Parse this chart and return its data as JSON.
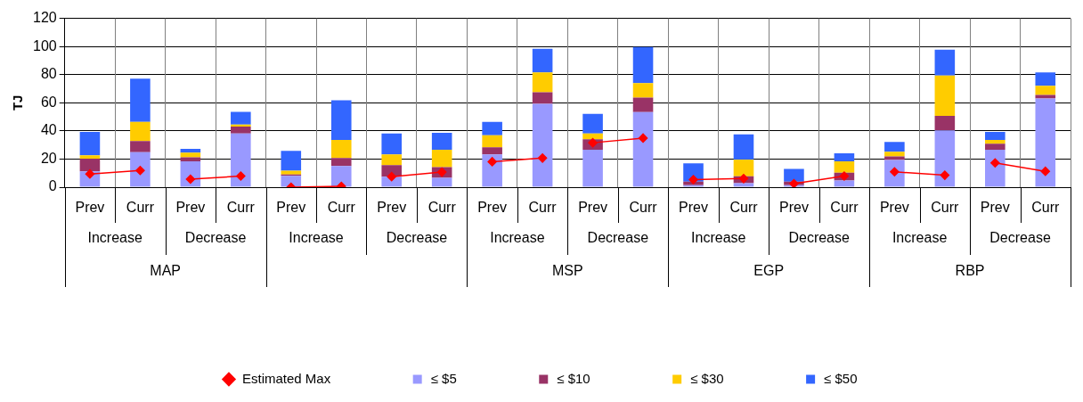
{
  "chart_data": {
    "type": "bar",
    "stacked": true,
    "ylabel": "TJ",
    "ylim": [
      0,
      120
    ],
    "yticks": [
      0,
      20,
      40,
      60,
      80,
      100,
      120
    ],
    "grid": true,
    "legend": "bottom",
    "categories": [
      "Prev",
      "Curr",
      "Prev",
      "Curr",
      "Prev",
      "Curr",
      "Prev",
      "Curr",
      "Prev",
      "Curr",
      "Prev",
      "Curr",
      "Prev",
      "Curr",
      "Prev",
      "Curr",
      "Prev",
      "Curr",
      "Prev",
      "Curr"
    ],
    "annotations": [
      "Increase",
      "Decrease",
      "Increase",
      "Decrease",
      "Increase",
      "Decrease",
      "Increase",
      "Decrease",
      "Increase",
      "Decrease",
      "MAP",
      null,
      "MSP",
      "EGP",
      "RBP"
    ],
    "series": [
      {
        "name": "≤ $5",
        "color": "#9999ff",
        "values": [
          11.3,
          24.8,
          18.4,
          38.2,
          8.1,
          15.1,
          7.5,
          6.7,
          23.3,
          59.3,
          26.6,
          53.4,
          1.5,
          2.8,
          1.5,
          4.8,
          19.4,
          40.4,
          26.6,
          63.1
        ]
      },
      {
        "name": "≤ $10",
        "color": "#993366",
        "values": [
          9,
          8,
          2.8,
          4.9,
          1,
          5.6,
          8.2,
          7.6,
          5.1,
          8.2,
          7.4,
          10.2,
          2.5,
          5,
          2.5,
          5.5,
          2.5,
          10.3,
          4.3,
          2.4
        ]
      },
      {
        "name": "≤ $30",
        "color": "#ffcc00",
        "values": [
          2.4,
          13.6,
          3.4,
          1.4,
          2.7,
          12.9,
          7.6,
          12.3,
          8.5,
          14.1,
          4.1,
          10.4,
          0,
          11.8,
          0,
          8.1,
          3.3,
          28.6,
          2.7,
          6.6
        ]
      },
      {
        "name": "≤ $50",
        "color": "#3366ff",
        "values": [
          16.6,
          30.8,
          2.6,
          9.1,
          14,
          28.2,
          14.8,
          12.1,
          9.5,
          16.8,
          14,
          25.7,
          12.9,
          17.9,
          9,
          5.6,
          7,
          18.5,
          5.7,
          9.4
        ]
      },
      {
        "name": "Estimated Max",
        "type": "line",
        "color": "#ff0000",
        "marker": "diamond",
        "values": [
          9.4,
          11.9,
          null,
          null,
          null,
          null,
          null,
          null,
          null,
          null,
          null,
          null,
          null,
          null,
          null,
          null,
          null,
          null,
          null,
          null
        ]
      },
      {
        "type": "line",
        "color": "#ff0000",
        "marker": "diamond",
        "values": [
          null,
          null,
          5.7,
          7.9,
          null,
          null,
          null,
          null,
          null,
          null,
          null,
          null,
          null,
          null,
          null,
          null,
          null,
          null,
          null,
          null
        ]
      },
      {
        "type": "line",
        "color": "#ff0000",
        "marker": "diamond",
        "values": [
          null,
          null,
          null,
          null,
          0,
          0.6,
          null,
          null,
          null,
          null,
          null,
          null,
          null,
          null,
          null,
          null,
          null,
          null,
          null,
          null
        ]
      },
      {
        "type": "line",
        "color": "#ff0000",
        "marker": "diamond",
        "values": [
          null,
          null,
          null,
          null,
          null,
          null,
          7.5,
          10.7,
          null,
          null,
          null,
          null,
          null,
          null,
          null,
          null,
          null,
          null,
          null,
          null
        ]
      },
      {
        "type": "line",
        "color": "#ff0000",
        "marker": "diamond",
        "values": [
          null,
          null,
          null,
          null,
          null,
          null,
          null,
          null,
          18.1,
          20.7,
          null,
          null,
          null,
          null,
          null,
          null,
          null,
          null,
          null,
          null
        ]
      },
      {
        "type": "line",
        "color": "#ff0000",
        "marker": "diamond",
        "values": [
          null,
          null,
          null,
          null,
          null,
          null,
          null,
          null,
          null,
          null,
          31.6,
          34.9,
          null,
          null,
          null,
          null,
          null,
          null,
          null,
          null
        ]
      },
      {
        "type": "line",
        "color": "#ff0000",
        "marker": "diamond",
        "values": [
          null,
          null,
          null,
          null,
          null,
          null,
          null,
          null,
          null,
          null,
          null,
          null,
          5.4,
          6.1,
          null,
          null,
          null,
          null,
          null,
          null
        ]
      },
      {
        "type": "line",
        "color": "#ff0000",
        "marker": "diamond",
        "values": [
          null,
          null,
          null,
          null,
          null,
          null,
          null,
          null,
          null,
          null,
          null,
          null,
          null,
          null,
          2.5,
          7.9,
          null,
          null,
          null,
          null
        ]
      },
      {
        "type": "line",
        "color": "#ff0000",
        "marker": "diamond",
        "values": [
          null,
          null,
          null,
          null,
          null,
          null,
          null,
          null,
          null,
          null,
          null,
          null,
          null,
          null,
          null,
          null,
          10.9,
          8.5,
          null,
          null
        ]
      },
      {
        "type": "line",
        "color": "#ff0000",
        "marker": "diamond",
        "values": [
          null,
          null,
          null,
          null,
          null,
          null,
          null,
          null,
          null,
          null,
          null,
          null,
          null,
          null,
          null,
          null,
          null,
          null,
          17.3,
          11.3
        ]
      }
    ]
  }
}
